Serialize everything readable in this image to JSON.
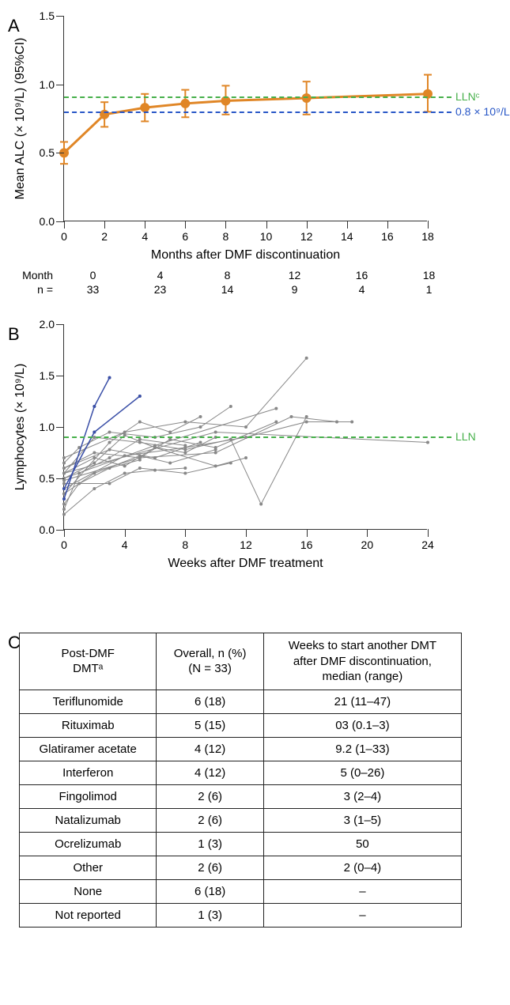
{
  "panelA": {
    "label": "A",
    "type": "line-errorbar",
    "x_label": "Months after DMF discontinuation",
    "y_label": "Mean ALC (× 10⁹/L) (95%CI)",
    "ylim": [
      0.0,
      1.5
    ],
    "ystep": 0.5,
    "xlim": [
      0,
      18
    ],
    "xstep": 2,
    "line_color": "#e08626",
    "lln_color": "#46b04a",
    "blue_color": "#2857c7",
    "lln_y": 0.91,
    "lln_label": "LLNᶜ",
    "blue_y": 0.8,
    "blue_label": "0.8 × 10⁹/L",
    "points": [
      {
        "x": 0,
        "y": 0.5,
        "lo": 0.42,
        "hi": 0.58
      },
      {
        "x": 2,
        "y": 0.78,
        "lo": 0.69,
        "hi": 0.87
      },
      {
        "x": 4,
        "y": 0.83,
        "lo": 0.73,
        "hi": 0.93
      },
      {
        "x": 6,
        "y": 0.86,
        "lo": 0.76,
        "hi": 0.96
      },
      {
        "x": 8,
        "y": 0.88,
        "lo": 0.78,
        "hi": 0.99
      },
      {
        "x": 12,
        "y": 0.9,
        "lo": 0.78,
        "hi": 1.02
      },
      {
        "x": 18,
        "y": 0.93,
        "lo": 0.8,
        "hi": 1.07
      }
    ],
    "n_table": {
      "row1_label": "Month",
      "row2_label": "n =",
      "months": [
        "0",
        "4",
        "8",
        "12",
        "16",
        "18"
      ],
      "ns": [
        "33",
        "23",
        "14",
        "9",
        "4",
        "1"
      ]
    }
  },
  "panelB": {
    "label": "B",
    "type": "spaghetti",
    "x_label": "Weeks after DMF treatment",
    "y_label": "Lymphocytes (× 10⁹/L)",
    "ylim": [
      0.0,
      2.0
    ],
    "ystep": 0.5,
    "xlim": [
      0,
      24
    ],
    "xstep": 4,
    "lln_color": "#46b04a",
    "lln_y": 0.91,
    "lln_label": "LLN",
    "gray_color": "#888888",
    "highlight_color": "#3a4fa8",
    "series": [
      [
        [
          0,
          0.3
        ],
        [
          2,
          1.2
        ],
        [
          3,
          1.48
        ]
      ],
      [
        [
          0,
          0.4
        ],
        [
          2,
          0.95
        ],
        [
          5,
          1.3
        ]
      ],
      [
        [
          0,
          0.35
        ],
        [
          3,
          0.85
        ],
        [
          5,
          1.05
        ],
        [
          7,
          0.95
        ],
        [
          9,
          1.1
        ]
      ],
      [
        [
          0,
          0.55
        ],
        [
          2,
          0.7
        ],
        [
          4,
          0.62
        ],
        [
          6,
          0.8
        ],
        [
          8,
          0.75
        ],
        [
          10,
          0.9
        ]
      ],
      [
        [
          0,
          0.2
        ],
        [
          1,
          0.55
        ],
        [
          3,
          0.7
        ],
        [
          5,
          0.88
        ],
        [
          8,
          0.82
        ]
      ],
      [
        [
          0,
          0.6
        ],
        [
          2,
          0.75
        ],
        [
          5,
          0.7
        ],
        [
          7,
          0.88
        ],
        [
          10,
          0.8
        ],
        [
          14,
          1.05
        ]
      ],
      [
        [
          0,
          0.45
        ],
        [
          3,
          0.45
        ],
        [
          5,
          0.6
        ],
        [
          8,
          0.55
        ],
        [
          11,
          0.65
        ]
      ],
      [
        [
          0,
          0.65
        ],
        [
          1,
          0.8
        ],
        [
          3,
          0.95
        ],
        [
          6,
          0.9
        ],
        [
          9,
          1.0
        ],
        [
          11,
          1.2
        ]
      ],
      [
        [
          0,
          0.5
        ],
        [
          2,
          0.65
        ],
        [
          4,
          0.92
        ],
        [
          6,
          0.8
        ],
        [
          10,
          0.62
        ],
        [
          12,
          0.7
        ]
      ],
      [
        [
          0,
          0.55
        ],
        [
          2,
          0.9
        ],
        [
          5,
          0.85
        ],
        [
          8,
          0.78
        ],
        [
          11,
          0.88
        ],
        [
          13,
          0.25
        ],
        [
          16,
          1.1
        ]
      ],
      [
        [
          0,
          0.7
        ],
        [
          4,
          0.95
        ],
        [
          8,
          1.05
        ],
        [
          12,
          1.0
        ],
        [
          16,
          1.67
        ]
      ],
      [
        [
          0,
          0.4
        ],
        [
          4,
          0.72
        ],
        [
          8,
          0.8
        ],
        [
          12,
          0.9
        ],
        [
          16,
          1.05
        ],
        [
          19,
          1.05
        ]
      ],
      [
        [
          0,
          0.15
        ],
        [
          2,
          0.4
        ],
        [
          4,
          0.55
        ],
        [
          6,
          0.58
        ],
        [
          8,
          0.6
        ]
      ],
      [
        [
          0,
          0.6
        ],
        [
          3,
          0.78
        ],
        [
          6,
          0.7
        ],
        [
          9,
          0.85
        ]
      ],
      [
        [
          0,
          0.35
        ],
        [
          2,
          0.55
        ],
        [
          5,
          0.72
        ],
        [
          7,
          0.65
        ],
        [
          10,
          0.78
        ]
      ],
      [
        [
          0,
          0.25
        ],
        [
          1,
          0.45
        ],
        [
          3,
          0.6
        ],
        [
          5,
          0.68
        ]
      ],
      [
        [
          0,
          0.5
        ],
        [
          6,
          0.82
        ],
        [
          14,
          1.18
        ]
      ],
      [
        [
          0,
          0.48
        ],
        [
          5,
          0.7
        ],
        [
          10,
          0.75
        ],
        [
          15,
          1.1
        ],
        [
          18,
          1.05
        ]
      ],
      [
        [
          0,
          0.55
        ],
        [
          10,
          0.95
        ],
        [
          24,
          0.85
        ]
      ]
    ],
    "highlight_series": [
      [
        [
          0,
          0.3
        ],
        [
          2,
          1.2
        ],
        [
          3,
          1.48
        ]
      ],
      [
        [
          0,
          0.4
        ],
        [
          2,
          0.95
        ],
        [
          5,
          1.3
        ]
      ]
    ]
  },
  "panelC": {
    "label": "C",
    "type": "table",
    "columns": [
      "Post-DMF\nDMTᵃ",
      "Overall, n (%)\n(N = 33)",
      "Weeks to start another DMT\nafter DMF discontinuation,\nmedian (range)"
    ],
    "rows": [
      [
        "Teriflunomide",
        "6 (18)",
        "21 (11–47)"
      ],
      [
        "Rituximab",
        "5 (15)",
        "03 (0.1–3)"
      ],
      [
        "Glatiramer acetate",
        "4 (12)",
        "9.2 (1–33)"
      ],
      [
        "Interferon",
        "4 (12)",
        "5 (0–26)"
      ],
      [
        "Fingolimod",
        "2 (6)",
        "3 (2–4)"
      ],
      [
        "Natalizumab",
        "2 (6)",
        "3 (1–5)"
      ],
      [
        "Ocrelizumab",
        "1 (3)",
        "50"
      ],
      [
        "Other",
        "2 (6)",
        "2 (0–4)"
      ],
      [
        "None",
        "6 (18)",
        "–"
      ],
      [
        "Not reported",
        "1 (3)",
        "–"
      ]
    ]
  }
}
